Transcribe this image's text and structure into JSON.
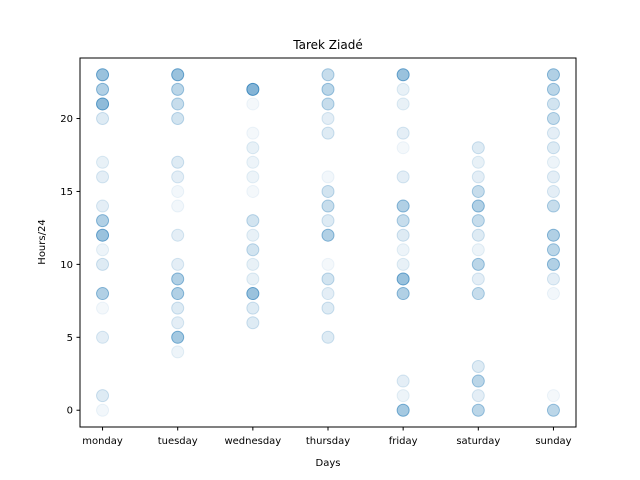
{
  "chart_data": {
    "type": "scatter",
    "title": "Tarek Ziadé",
    "xlabel": "Days",
    "ylabel": "Hours/24",
    "categories": [
      "monday",
      "tuesday",
      "wednesday",
      "thursday",
      "friday",
      "saturday",
      "sunday"
    ],
    "xlim": [
      -0.3,
      6.3
    ],
    "ylim": [
      -1.15,
      24.15
    ],
    "yticks": [
      0,
      5,
      10,
      15,
      20
    ],
    "grid": false,
    "marker_color": "#1f77b4",
    "points": [
      {
        "x": 0,
        "y": 23,
        "alpha": 0.45
      },
      {
        "x": 0,
        "y": 22,
        "alpha": 0.35
      },
      {
        "x": 0,
        "y": 21,
        "alpha": 0.5
      },
      {
        "x": 0,
        "y": 20,
        "alpha": 0.15
      },
      {
        "x": 0,
        "y": 17,
        "alpha": 0.1
      },
      {
        "x": 0,
        "y": 16,
        "alpha": 0.12
      },
      {
        "x": 0,
        "y": 14,
        "alpha": 0.12
      },
      {
        "x": 0,
        "y": 13,
        "alpha": 0.35
      },
      {
        "x": 0,
        "y": 12,
        "alpha": 0.45
      },
      {
        "x": 0,
        "y": 11,
        "alpha": 0.08
      },
      {
        "x": 0,
        "y": 10,
        "alpha": 0.15
      },
      {
        "x": 0,
        "y": 8,
        "alpha": 0.35
      },
      {
        "x": 0,
        "y": 7,
        "alpha": 0.05
      },
      {
        "x": 0,
        "y": 5,
        "alpha": 0.12
      },
      {
        "x": 0,
        "y": 1,
        "alpha": 0.15
      },
      {
        "x": 0,
        "y": 0,
        "alpha": 0.06
      },
      {
        "x": 1,
        "y": 23,
        "alpha": 0.45
      },
      {
        "x": 1,
        "y": 22,
        "alpha": 0.3
      },
      {
        "x": 1,
        "y": 21,
        "alpha": 0.25
      },
      {
        "x": 1,
        "y": 20,
        "alpha": 0.2
      },
      {
        "x": 1,
        "y": 17,
        "alpha": 0.15
      },
      {
        "x": 1,
        "y": 16,
        "alpha": 0.12
      },
      {
        "x": 1,
        "y": 15,
        "alpha": 0.06
      },
      {
        "x": 1,
        "y": 14,
        "alpha": 0.06
      },
      {
        "x": 1,
        "y": 12,
        "alpha": 0.12
      },
      {
        "x": 1,
        "y": 10,
        "alpha": 0.12
      },
      {
        "x": 1,
        "y": 9,
        "alpha": 0.35
      },
      {
        "x": 1,
        "y": 8,
        "alpha": 0.35
      },
      {
        "x": 1,
        "y": 7,
        "alpha": 0.15
      },
      {
        "x": 1,
        "y": 6,
        "alpha": 0.12
      },
      {
        "x": 1,
        "y": 5,
        "alpha": 0.4
      },
      {
        "x": 1,
        "y": 4,
        "alpha": 0.08
      },
      {
        "x": 2,
        "y": 22,
        "alpha": 0.55
      },
      {
        "x": 2,
        "y": 21,
        "alpha": 0.05
      },
      {
        "x": 2,
        "y": 19,
        "alpha": 0.05
      },
      {
        "x": 2,
        "y": 18,
        "alpha": 0.1
      },
      {
        "x": 2,
        "y": 17,
        "alpha": 0.08
      },
      {
        "x": 2,
        "y": 16,
        "alpha": 0.08
      },
      {
        "x": 2,
        "y": 15,
        "alpha": 0.05
      },
      {
        "x": 2,
        "y": 13,
        "alpha": 0.2
      },
      {
        "x": 2,
        "y": 12,
        "alpha": 0.1
      },
      {
        "x": 2,
        "y": 11,
        "alpha": 0.2
      },
      {
        "x": 2,
        "y": 10,
        "alpha": 0.1
      },
      {
        "x": 2,
        "y": 9,
        "alpha": 0.1
      },
      {
        "x": 2,
        "y": 8,
        "alpha": 0.45
      },
      {
        "x": 2,
        "y": 7,
        "alpha": 0.15
      },
      {
        "x": 2,
        "y": 6,
        "alpha": 0.15
      },
      {
        "x": 3,
        "y": 23,
        "alpha": 0.25
      },
      {
        "x": 3,
        "y": 22,
        "alpha": 0.3
      },
      {
        "x": 3,
        "y": 21,
        "alpha": 0.25
      },
      {
        "x": 3,
        "y": 20,
        "alpha": 0.12
      },
      {
        "x": 3,
        "y": 19,
        "alpha": 0.15
      },
      {
        "x": 3,
        "y": 16,
        "alpha": 0.06
      },
      {
        "x": 3,
        "y": 15,
        "alpha": 0.2
      },
      {
        "x": 3,
        "y": 14,
        "alpha": 0.25
      },
      {
        "x": 3,
        "y": 13,
        "alpha": 0.15
      },
      {
        "x": 3,
        "y": 12,
        "alpha": 0.35
      },
      {
        "x": 3,
        "y": 10,
        "alpha": 0.05
      },
      {
        "x": 3,
        "y": 9,
        "alpha": 0.2
      },
      {
        "x": 3,
        "y": 8,
        "alpha": 0.12
      },
      {
        "x": 3,
        "y": 7,
        "alpha": 0.15
      },
      {
        "x": 3,
        "y": 5,
        "alpha": 0.15
      },
      {
        "x": 4,
        "y": 23,
        "alpha": 0.45
      },
      {
        "x": 4,
        "y": 22,
        "alpha": 0.1
      },
      {
        "x": 4,
        "y": 21,
        "alpha": 0.1
      },
      {
        "x": 4,
        "y": 19,
        "alpha": 0.12
      },
      {
        "x": 4,
        "y": 18,
        "alpha": 0.05
      },
      {
        "x": 4,
        "y": 16,
        "alpha": 0.12
      },
      {
        "x": 4,
        "y": 14,
        "alpha": 0.35
      },
      {
        "x": 4,
        "y": 13,
        "alpha": 0.25
      },
      {
        "x": 4,
        "y": 12,
        "alpha": 0.15
      },
      {
        "x": 4,
        "y": 11,
        "alpha": 0.08
      },
      {
        "x": 4,
        "y": 10,
        "alpha": 0.1
      },
      {
        "x": 4,
        "y": 9,
        "alpha": 0.45
      },
      {
        "x": 4,
        "y": 8,
        "alpha": 0.35
      },
      {
        "x": 4,
        "y": 2,
        "alpha": 0.12
      },
      {
        "x": 4,
        "y": 1,
        "alpha": 0.08
      },
      {
        "x": 4,
        "y": 0,
        "alpha": 0.4
      },
      {
        "x": 5,
        "y": 18,
        "alpha": 0.15
      },
      {
        "x": 5,
        "y": 17,
        "alpha": 0.1
      },
      {
        "x": 5,
        "y": 16,
        "alpha": 0.12
      },
      {
        "x": 5,
        "y": 15,
        "alpha": 0.25
      },
      {
        "x": 5,
        "y": 14,
        "alpha": 0.35
      },
      {
        "x": 5,
        "y": 13,
        "alpha": 0.25
      },
      {
        "x": 5,
        "y": 12,
        "alpha": 0.15
      },
      {
        "x": 5,
        "y": 11,
        "alpha": 0.08
      },
      {
        "x": 5,
        "y": 10,
        "alpha": 0.3
      },
      {
        "x": 5,
        "y": 9,
        "alpha": 0.12
      },
      {
        "x": 5,
        "y": 8,
        "alpha": 0.25
      },
      {
        "x": 5,
        "y": 3,
        "alpha": 0.15
      },
      {
        "x": 5,
        "y": 2,
        "alpha": 0.3
      },
      {
        "x": 5,
        "y": 1,
        "alpha": 0.12
      },
      {
        "x": 5,
        "y": 0,
        "alpha": 0.3
      },
      {
        "x": 6,
        "y": 23,
        "alpha": 0.35
      },
      {
        "x": 6,
        "y": 22,
        "alpha": 0.3
      },
      {
        "x": 6,
        "y": 21,
        "alpha": 0.2
      },
      {
        "x": 6,
        "y": 20,
        "alpha": 0.25
      },
      {
        "x": 6,
        "y": 19,
        "alpha": 0.12
      },
      {
        "x": 6,
        "y": 18,
        "alpha": 0.15
      },
      {
        "x": 6,
        "y": 17,
        "alpha": 0.08
      },
      {
        "x": 6,
        "y": 16,
        "alpha": 0.12
      },
      {
        "x": 6,
        "y": 15,
        "alpha": 0.12
      },
      {
        "x": 6,
        "y": 14,
        "alpha": 0.25
      },
      {
        "x": 6,
        "y": 12,
        "alpha": 0.35
      },
      {
        "x": 6,
        "y": 11,
        "alpha": 0.3
      },
      {
        "x": 6,
        "y": 10,
        "alpha": 0.35
      },
      {
        "x": 6,
        "y": 9,
        "alpha": 0.12
      },
      {
        "x": 6,
        "y": 8,
        "alpha": 0.06
      },
      {
        "x": 6,
        "y": 1,
        "alpha": 0.05
      },
      {
        "x": 6,
        "y": 0,
        "alpha": 0.3
      }
    ]
  }
}
